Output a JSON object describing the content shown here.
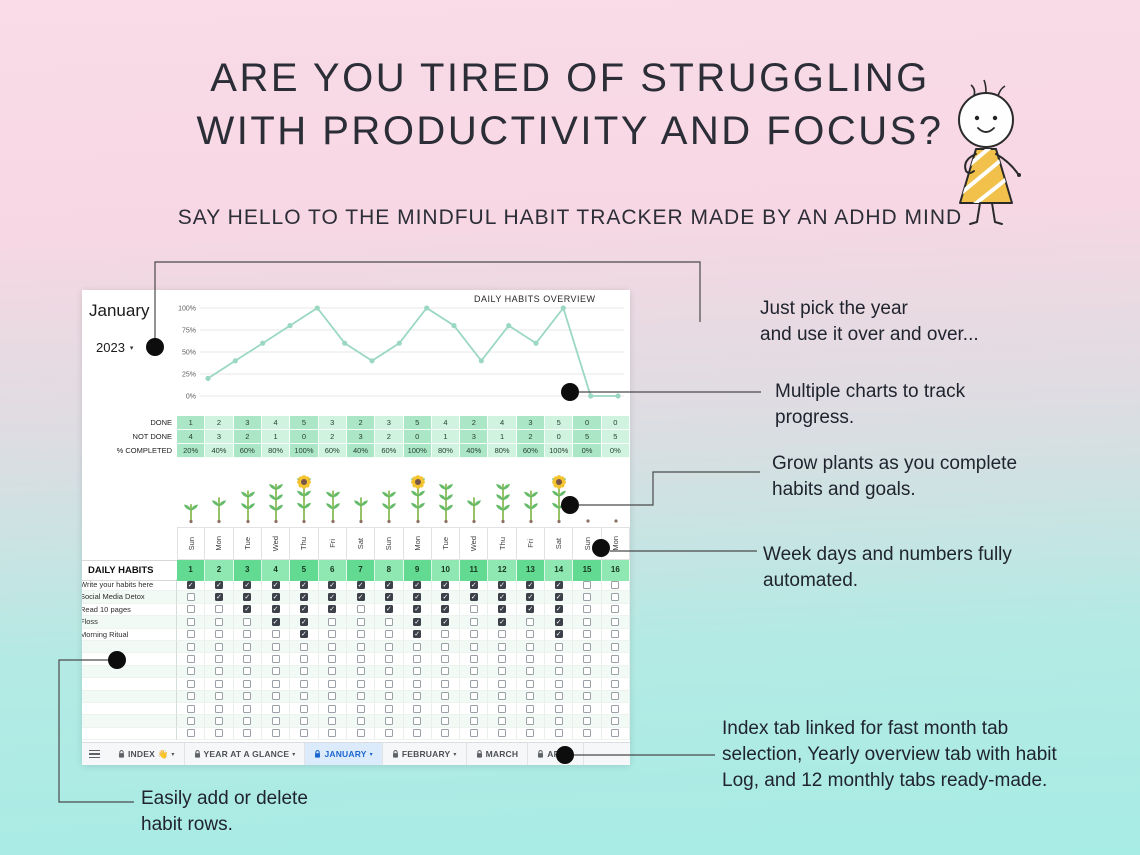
{
  "poster": {
    "title_line1": "ARE YOU TIRED OF STRUGGLING",
    "title_line2": "WITH PRODUCTIVITY AND FOCUS?",
    "subtitle": "SAY HELLO TO THE MINDFUL HABIT TRACKER MADE BY AN ADHD MIND"
  },
  "annotations": {
    "year": {
      "lines": [
        "Just pick the year",
        "and use it over and over..."
      ]
    },
    "charts": {
      "lines": [
        "Multiple charts to track",
        "progress."
      ]
    },
    "plants": {
      "lines": [
        "Grow plants  as you complete",
        "habits and goals."
      ]
    },
    "weekdays": {
      "lines": [
        "Week days and numbers fully",
        "automated."
      ]
    },
    "tabs": {
      "lines": [
        "Index tab linked for fast month tab",
        "selection, Yearly overview tab with habit",
        "Log, and 12 monthly tabs ready-made."
      ]
    },
    "rows": {
      "lines": [
        "Easily add or delete",
        "habit rows."
      ]
    }
  },
  "sheet": {
    "month": "January",
    "year": "2023",
    "chart_title": "DAILY HABITS OVERVIEW",
    "stats": {
      "done_label": "DONE",
      "not_done_label": "NOT DONE",
      "pct_label": "% COMPLETED",
      "done": [
        1,
        2,
        3,
        4,
        5,
        3,
        2,
        3,
        5,
        4,
        2,
        4,
        3,
        5,
        0,
        0
      ],
      "not_done": [
        4,
        3,
        2,
        1,
        0,
        2,
        3,
        2,
        0,
        1,
        3,
        1,
        2,
        0,
        5,
        5
      ],
      "pct": [
        "20%",
        "40%",
        "60%",
        "80%",
        "100%",
        "60%",
        "40%",
        "60%",
        "100%",
        "80%",
        "40%",
        "80%",
        "60%",
        "100%",
        "0%",
        "0%"
      ]
    },
    "weekdays": [
      "Sun",
      "Mon",
      "Tue",
      "Wed",
      "Thu",
      "Fri",
      "Sat",
      "Sun",
      "Mon",
      "Tue",
      "Wed",
      "Thu",
      "Fri",
      "Sat",
      "Sun",
      "Mon"
    ],
    "day_numbers": [
      1,
      2,
      3,
      4,
      5,
      6,
      7,
      8,
      9,
      10,
      11,
      12,
      13,
      14,
      15,
      16
    ],
    "daily_habits_label": "DAILY HABITS",
    "habits": [
      "Write your habits here",
      "Social Media Detox",
      "Read 10 pages",
      "Floss",
      "Morning Ritual"
    ],
    "empty_row_count": 8,
    "tabs": [
      {
        "label": "INDEX 👋",
        "locked": true,
        "arrow": true,
        "active": false
      },
      {
        "label": "YEAR AT A GLANCE",
        "locked": true,
        "arrow": true,
        "active": false
      },
      {
        "label": "JANUARY",
        "locked": true,
        "arrow": true,
        "active": true
      },
      {
        "label": "FEBRUARY",
        "locked": true,
        "arrow": true,
        "active": false
      },
      {
        "label": "MARCH",
        "locked": true,
        "arrow": false,
        "active": false
      },
      {
        "label": "APRIL",
        "locked": true,
        "arrow": false,
        "active": false
      }
    ]
  },
  "chart_data": {
    "type": "line",
    "title": "DAILY HABITS OVERVIEW",
    "x": [
      1,
      2,
      3,
      4,
      5,
      6,
      7,
      8,
      9,
      10,
      11,
      12,
      13,
      14,
      15,
      16
    ],
    "values_pct": [
      20,
      40,
      60,
      80,
      100,
      60,
      40,
      60,
      100,
      80,
      40,
      80,
      60,
      100,
      0,
      0
    ],
    "yticks": [
      "100%",
      "75%",
      "50%",
      "25%",
      "0%"
    ],
    "ylim": [
      0,
      100
    ],
    "grid": true,
    "legend": "none",
    "line_color": "#9bd8c2"
  },
  "colors": {
    "background_top": "#f8dae6",
    "background_bottom": "#a7e9e2",
    "cell_green_dark": "#abe7c7",
    "cell_green_light": "#cff3de",
    "header_green_dark": "#63da92",
    "header_green_light": "#8fe7b1",
    "active_tab_blue": "#1a66d0",
    "chart_line": "#9bd8c2",
    "marker_dot": "#0d0d0d"
  }
}
